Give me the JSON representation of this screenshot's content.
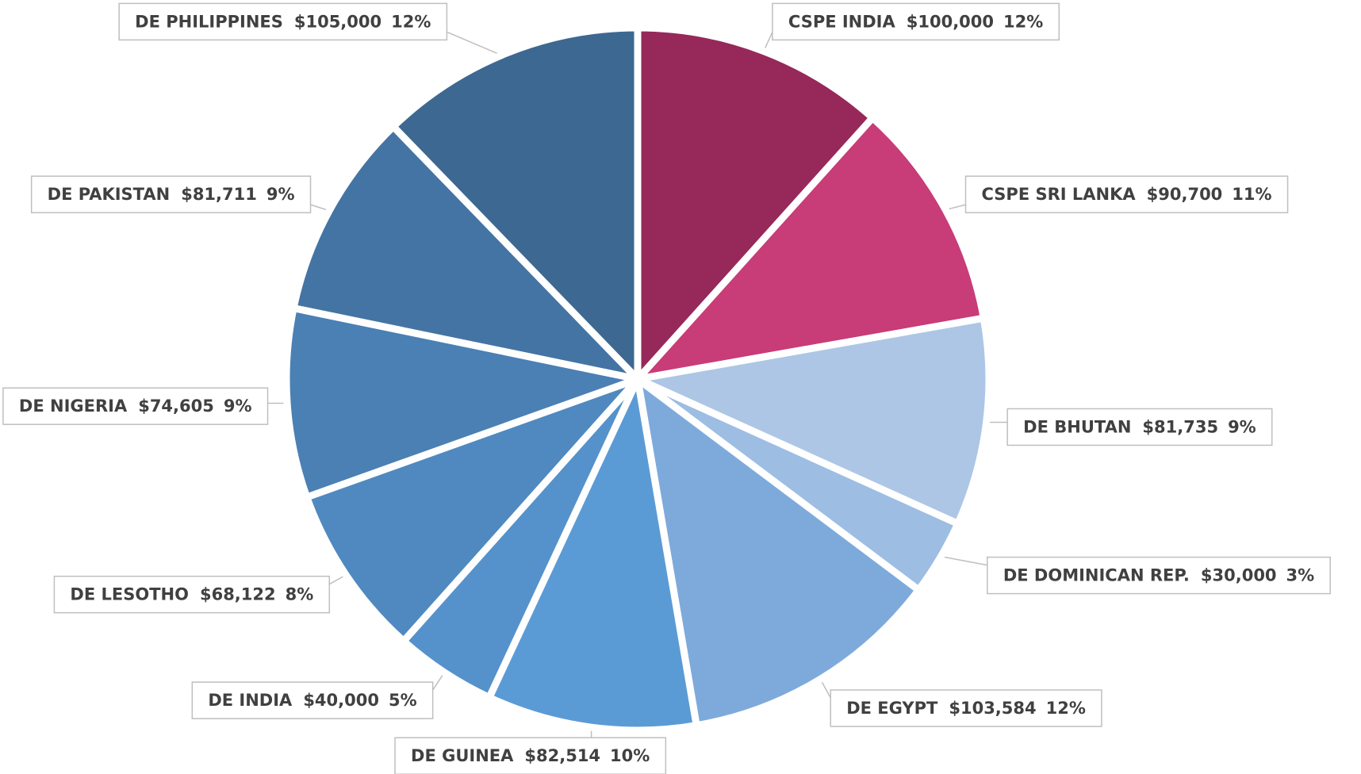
{
  "chart_data": {
    "type": "pie",
    "categories": [
      "CSPE INDIA",
      "CSPE SRI LANKA",
      "DE BHUTAN",
      "DE DOMINICAN REP.",
      "DE EGYPT",
      "DE GUINEA",
      "DE INDIA",
      "DE LESOTHO",
      "DE NIGERIA",
      "DE PAKISTAN",
      "DE PHILIPPINES"
    ],
    "values": [
      100000,
      90700,
      81735,
      30000,
      103584,
      82514,
      40000,
      68122,
      74605,
      81711,
      105000
    ],
    "value_labels": [
      "$100,000",
      "$90,700",
      "$81,735",
      "$30,000",
      "$103,584",
      "$82,514",
      "$40,000",
      "$68,122",
      "$74,605",
      "$81,711",
      "$105,000"
    ],
    "percent_labels": [
      "12%",
      "11%",
      "9%",
      "3%",
      "12%",
      "10%",
      "5%",
      "8%",
      "9%",
      "9%",
      "12%"
    ],
    "colors": [
      "#96285a",
      "#c83c78",
      "#adc6e6",
      "#9dbde3",
      "#7eaadb",
      "#5b9bd5",
      "#5592cb",
      "#4f89c0",
      "#4a80b4",
      "#4474a3",
      "#3d6891"
    ]
  }
}
